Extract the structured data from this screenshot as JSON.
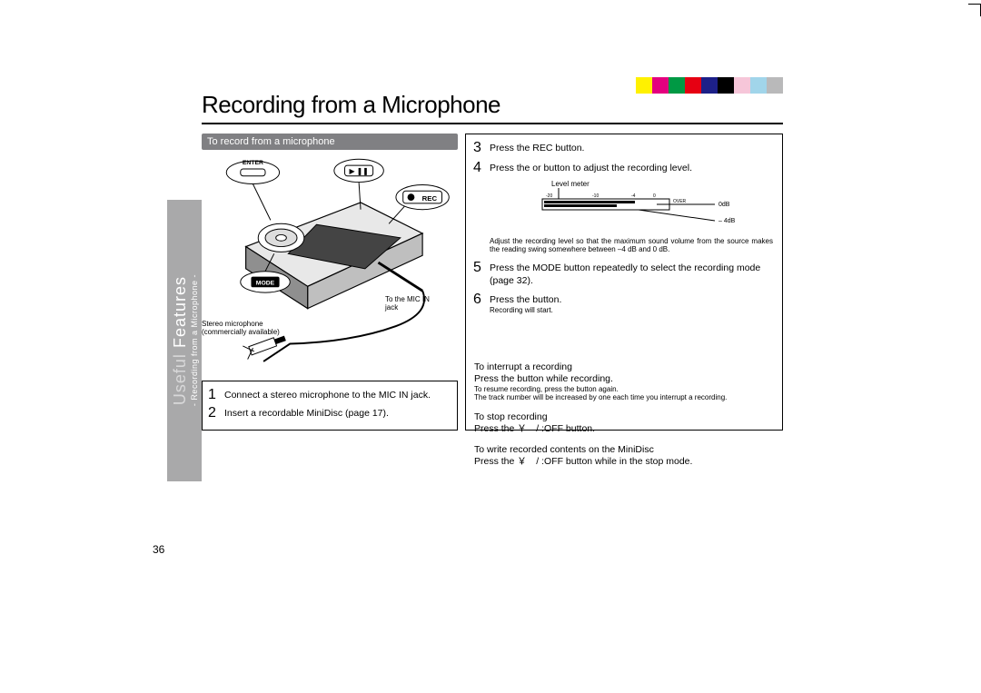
{
  "color_strip": [
    "#fff100",
    "#e4007f",
    "#009944",
    "#e60012",
    "#1d2088",
    "#000000",
    "#f6c6d9",
    "#a1d5ea",
    "#b9b9ba"
  ],
  "title": "Recording from a Microphone",
  "sidebar": {
    "main_label_1": "Useful",
    "main_label_2": "Features",
    "sub_label": "- Recording from a Microphone  -"
  },
  "page_number": "36",
  "subheader": "To record from a microphone",
  "illus": {
    "enter_label": "ENTER",
    "playpause_glyph": "▶ ❚❚",
    "rec_label": "REC",
    "mode_label": "MODE",
    "mic_in_label": "To the MIC IN jack",
    "stereo_mic_label_1": "Stereo microphone",
    "stereo_mic_label_2": "(commercially available)"
  },
  "left_steps": {
    "s1": {
      "num": "1",
      "text": "Connect a stereo microphone to the MIC IN jack."
    },
    "s2": {
      "num": "2",
      "text": "Insert a recordable MiniDisc (page 17)."
    }
  },
  "right_steps": {
    "s3": {
      "num": "3",
      "text": "Press the REC button."
    },
    "s4": {
      "num": "4",
      "text_a": "Press the ",
      "text_b": " or ",
      "text_c": " button to adjust the recording level."
    },
    "level_meter_label": "Level meter",
    "db_0": "0dB",
    "db_4": "– 4dB",
    "over_label": "OVER",
    "adjust_note": "Adjust the recording level so that the maximum sound volume from the source makes the reading swing somewhere between –4 dB and 0 dB.",
    "s5": {
      "num": "5",
      "text": "Press the MODE button repeatedly to select the recording mode (page 32)."
    },
    "s6": {
      "num": "6",
      "text_a": "Press the ",
      "text_b": " button.",
      "note": "Recording will start."
    }
  },
  "below": {
    "interrupt_h": "To interrupt a recording",
    "interrupt_1a": "Press the ",
    "interrupt_1b": " button while recording.",
    "interrupt_2a": "To resume recording, press the ",
    "interrupt_2b": " button again.",
    "interrupt_3": "The track number will be increased by one each time you interrupt a recording.",
    "stop_h": "To stop recording",
    "stop_1": "Press the ￥　/ :OFF button.",
    "write_h": "To write recorded contents on the MiniDisc",
    "write_1": "Press the ￥　/ :OFF button while in the stop mode."
  },
  "meter_ticks": [
    "-20",
    "-10",
    "-4",
    "0"
  ]
}
